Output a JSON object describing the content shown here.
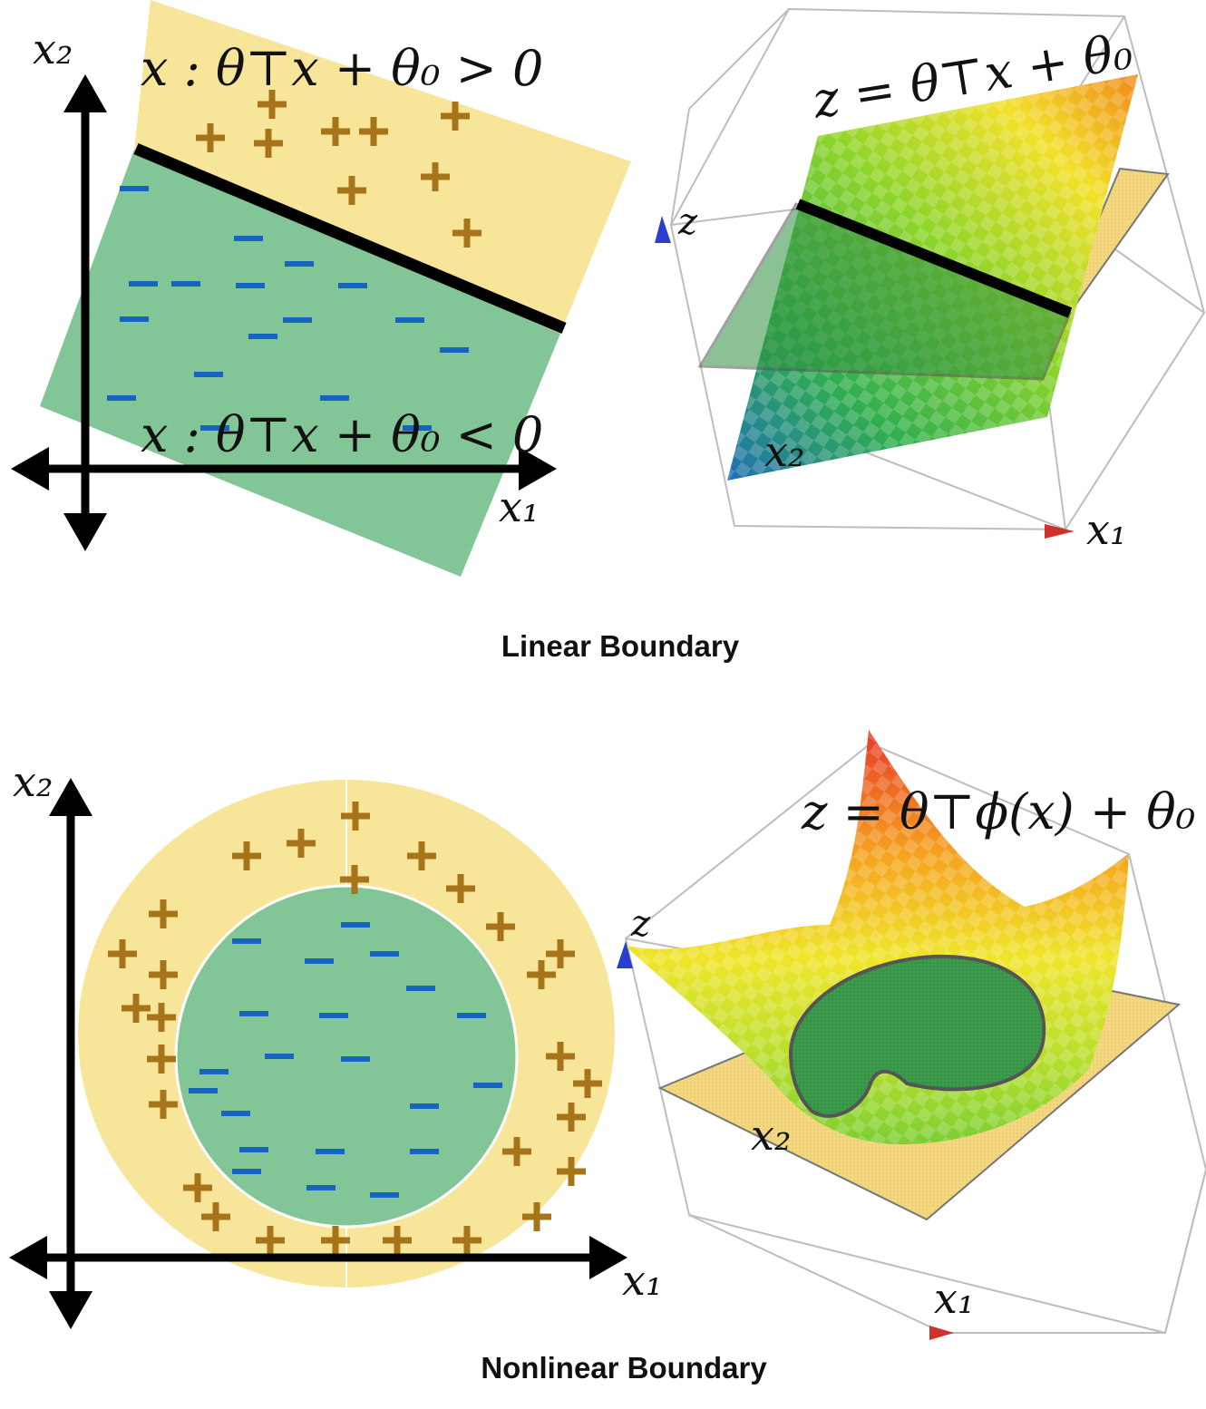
{
  "captions": {
    "top": "Linear Boundary",
    "bottom": "Nonlinear Boundary"
  },
  "linear": {
    "positive_region_label": "x : θ⊤x + θ₀ > 0",
    "negative_region_label": "x : θ⊤x + θ₀ < 0",
    "surface_label": "z = θ⊤x + θ₀",
    "axis_x1": "x₁",
    "axis_x2": "x₂",
    "axis_z": "z",
    "axis3d_x1": "x₁",
    "axis3d_x2": "x₂",
    "positive_symbol": "+",
    "negative_symbol": "−"
  },
  "nonlinear": {
    "surface_label": "z = θ⊤ϕ(x) + θ₀",
    "axis_x1": "x₁",
    "axis_x2": "x₂",
    "axis_z": "z",
    "axis3d_x1": "x₁",
    "axis3d_x2": "x₂",
    "positive_symbol": "+",
    "negative_symbol": "−"
  },
  "colors": {
    "positive_region": "#f7e59a",
    "negative_region": "#82c596",
    "plus": "#a8741a",
    "minus": "#1565c0",
    "boundary": "#000000"
  }
}
